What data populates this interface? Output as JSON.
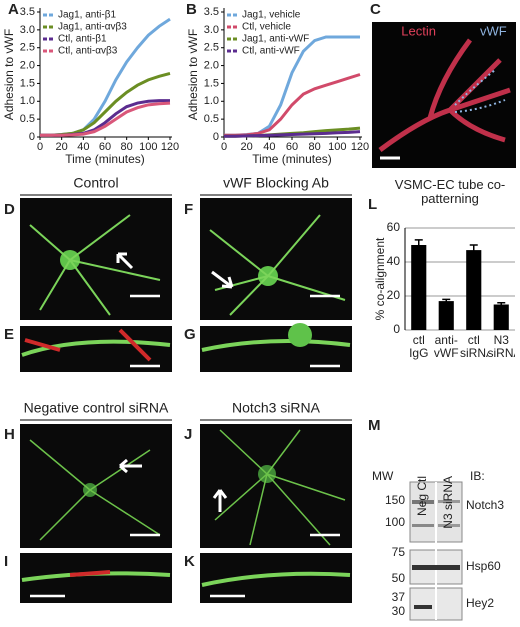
{
  "chart_data": [
    {
      "type": "line",
      "xlabel": "Time (minutes)",
      "ylabel": "Adhesion to vWF",
      "x": [
        0,
        10,
        20,
        30,
        40,
        50,
        60,
        70,
        80,
        90,
        100,
        110,
        120
      ],
      "xlim": [
        0,
        120
      ],
      "xticks": [
        0,
        20,
        40,
        60,
        80,
        100,
        120
      ],
      "ylim": [
        0,
        3.5
      ],
      "yticks": [
        0,
        0.5,
        {
          "value": 1,
          "label": "1.0"
        },
        1.5,
        {
          "value": 2,
          "label": "2.0"
        },
        2.5,
        {
          "value": 3,
          "label": "3.0"
        },
        3.5
      ],
      "legend": "upper left",
      "series": [
        {
          "name": "Jag1, anti-β1",
          "color": "#6fa8dc",
          "values": [
            0.05,
            0.05,
            0.07,
            0.1,
            0.2,
            0.5,
            1.0,
            1.6,
            2.1,
            2.5,
            2.85,
            3.1,
            3.3
          ]
        },
        {
          "name": "Jag1, anti-αvβ3",
          "color": "#6b8e23",
          "values": [
            0.05,
            0.05,
            0.07,
            0.1,
            0.2,
            0.4,
            0.7,
            1.0,
            1.25,
            1.45,
            1.6,
            1.7,
            1.78
          ]
        },
        {
          "name": "Ctl, anti-β1",
          "color": "#5b2c8f",
          "values": [
            0.05,
            0.05,
            0.05,
            0.07,
            0.1,
            0.2,
            0.4,
            0.65,
            0.85,
            0.95,
            1.0,
            1.02,
            1.02
          ]
        },
        {
          "name": "Ctl, anti-αvβ3",
          "color": "#d9577a",
          "values": [
            0.05,
            0.05,
            0.05,
            0.06,
            0.08,
            0.15,
            0.3,
            0.5,
            0.7,
            0.82,
            0.9,
            0.93,
            0.95
          ]
        }
      ]
    },
    {
      "type": "line",
      "xlabel": "Time (minutes)",
      "ylabel": "Adhesion to vWF",
      "x": [
        0,
        10,
        20,
        30,
        40,
        50,
        60,
        70,
        80,
        90,
        100,
        110,
        120
      ],
      "xlim": [
        0,
        120
      ],
      "xticks": [
        0,
        20,
        40,
        60,
        80,
        100,
        120
      ],
      "ylim": [
        0,
        3.5
      ],
      "yticks": [
        0,
        0.5,
        {
          "value": 1,
          "label": "1.0"
        },
        1.5,
        {
          "value": 2,
          "label": "2.0"
        },
        2.5,
        {
          "value": 3,
          "label": "3.0"
        },
        3.5
      ],
      "legend": "upper left",
      "series": [
        {
          "name": "Jag1, vehicle",
          "color": "#6fa8dc",
          "values": [
            0.05,
            0.05,
            0.07,
            0.1,
            0.3,
            0.9,
            1.8,
            2.4,
            2.7,
            2.8,
            2.8,
            2.8,
            2.8
          ]
        },
        {
          "name": "Ctl, vehicle",
          "color": "#d14a6a",
          "values": [
            0.05,
            0.05,
            0.06,
            0.1,
            0.2,
            0.5,
            0.9,
            1.2,
            1.35,
            1.45,
            1.55,
            1.65,
            1.75
          ]
        },
        {
          "name": "Jag1, anti-vWF",
          "color": "#6b8e23",
          "values": [
            0.02,
            0.02,
            0.03,
            0.04,
            0.06,
            0.08,
            0.1,
            0.12,
            0.15,
            0.18,
            0.2,
            0.22,
            0.25
          ]
        },
        {
          "name": "Ctl, anti-vWF",
          "color": "#5b2c8f",
          "values": [
            0.02,
            0.02,
            0.03,
            0.04,
            0.05,
            0.06,
            0.07,
            0.08,
            0.09,
            0.1,
            0.12,
            0.13,
            0.15
          ]
        }
      ]
    },
    {
      "type": "bar",
      "title": "VSMC-EC tube co-patterning",
      "ylabel": "% co-alignment",
      "categories": [
        "ctl IgG",
        "anti-vWF",
        "ctl siRNA",
        "N3 siRNA"
      ],
      "values": [
        50,
        17,
        47,
        15
      ],
      "errors": [
        3,
        1,
        3,
        1
      ],
      "color": "#000000",
      "ylim": [
        0,
        60
      ],
      "yticks": [
        0,
        20,
        40,
        60
      ],
      "grid": true
    }
  ],
  "panels": {
    "letters": [
      "A",
      "B",
      "C",
      "D",
      "E",
      "F",
      "G",
      "H",
      "I",
      "J",
      "K",
      "L",
      "M"
    ],
    "headings": [
      "Control",
      "vWF Blocking Ab",
      "Negative control siRNA",
      "Notch3 siRNA"
    ],
    "stain_labels": [
      "Lectin",
      "vWF"
    ],
    "blot": {
      "lanes": [
        "Neg Ctl",
        "N3 siRNA"
      ],
      "mw_title": "MW",
      "ib_title": "IB:",
      "mw": [
        "150",
        "100",
        "75",
        "50",
        "37",
        "30"
      ],
      "antibodies": [
        "Notch3",
        "Hsp60",
        "Hey2"
      ]
    }
  }
}
